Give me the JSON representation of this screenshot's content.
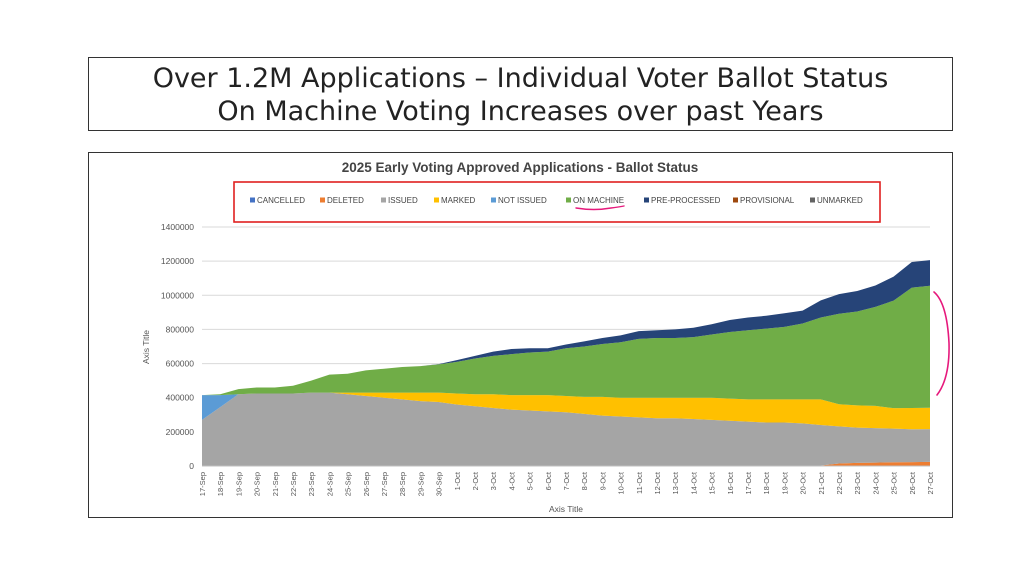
{
  "slide": {
    "title_line1": "Over 1.2M Applications – Individual Voter Ballot Status",
    "title_line2": "On Machine Voting Increases over past Years"
  },
  "colors": {
    "cancelled": "#4472c4",
    "deleted": "#ed7d31",
    "issued": "#a5a5a5",
    "marked": "#ffc000",
    "not_issued": "#5b9bd5",
    "on_machine": "#70ad47",
    "pre_processed": "#264478",
    "provisional": "#9e480e",
    "unmarked": "#636363",
    "legend_highlight": "#e0201f",
    "annotation": "#e6197c"
  },
  "chart_data": {
    "type": "area",
    "stacked": true,
    "title": "2025 Early Voting Approved Applications - Ballot Status",
    "xlabel": "Axis Title",
    "ylabel": "Axis Title",
    "ylim": [
      0,
      1400000
    ],
    "yticks": [
      0,
      200000,
      400000,
      600000,
      800000,
      1000000,
      1200000,
      1400000
    ],
    "ytick_labels": [
      "0",
      "200000",
      "400000",
      "600000",
      "800000",
      "1000000",
      "1200000",
      "1400000"
    ],
    "legend_position": "top",
    "categories": [
      "17-Sep",
      "18-Sep",
      "19-Sep",
      "20-Sep",
      "21-Sep",
      "22-Sep",
      "23-Sep",
      "24-Sep",
      "25-Sep",
      "26-Sep",
      "27-Sep",
      "28-Sep",
      "29-Sep",
      "30-Sep",
      "1-Oct",
      "2-Oct",
      "3-Oct",
      "4-Oct",
      "5-Oct",
      "6-Oct",
      "7-Oct",
      "8-Oct",
      "9-Oct",
      "10-Oct",
      "11-Oct",
      "12-Oct",
      "13-Oct",
      "14-Oct",
      "15-Oct",
      "16-Oct",
      "17-Oct",
      "18-Oct",
      "19-Oct",
      "20-Oct",
      "21-Oct",
      "22-Oct",
      "23-Oct",
      "24-Oct",
      "25-Oct",
      "26-Oct",
      "27-Oct"
    ],
    "series": [
      {
        "name": "CANCELLED",
        "key": "cancelled",
        "values": [
          0,
          0,
          0,
          0,
          0,
          0,
          0,
          0,
          0,
          0,
          0,
          0,
          0,
          0,
          0,
          0,
          0,
          0,
          0,
          0,
          0,
          0,
          0,
          0,
          0,
          0,
          0,
          0,
          0,
          0,
          0,
          0,
          0,
          0,
          0,
          0,
          0,
          0,
          0,
          0,
          0
        ]
      },
      {
        "name": "DELETED",
        "key": "deleted",
        "values": [
          3000,
          3000,
          3000,
          3000,
          3000,
          3000,
          3000,
          3000,
          3000,
          3000,
          3000,
          3000,
          3000,
          3000,
          3000,
          3000,
          3000,
          3000,
          3000,
          3000,
          3000,
          3000,
          3000,
          3000,
          3000,
          3000,
          3000,
          3000,
          3000,
          3000,
          3000,
          3000,
          3000,
          3000,
          3000,
          15000,
          18000,
          20000,
          22000,
          23000,
          24000
        ]
      },
      {
        "name": "ISSUED",
        "key": "issued",
        "values": [
          267000,
          342000,
          417000,
          422000,
          422000,
          422000,
          427000,
          427000,
          417000,
          407000,
          397000,
          387000,
          377000,
          372000,
          357000,
          347000,
          337000,
          327000,
          322000,
          317000,
          312000,
          302000,
          292000,
          287000,
          282000,
          277000,
          277000,
          272000,
          267000,
          262000,
          257000,
          252000,
          252000,
          247000,
          237000,
          217000,
          207000,
          202000,
          197000,
          192000,
          192000
        ]
      },
      {
        "name": "MARKED",
        "key": "marked",
        "values": [
          0,
          0,
          0,
          0,
          0,
          0,
          0,
          0,
          10000,
          20000,
          30000,
          40000,
          50000,
          55000,
          65000,
          70000,
          80000,
          85000,
          90000,
          95000,
          95000,
          100000,
          110000,
          110000,
          115000,
          120000,
          120000,
          125000,
          130000,
          130000,
          130000,
          135000,
          135000,
          140000,
          150000,
          130000,
          130000,
          130000,
          120000,
          125000,
          125000
        ]
      },
      {
        "name": "NOT ISSUED",
        "key": "not_issued",
        "values": [
          145000,
          70000,
          0,
          0,
          0,
          0,
          0,
          0,
          0,
          0,
          0,
          0,
          0,
          0,
          0,
          0,
          0,
          0,
          0,
          0,
          0,
          0,
          0,
          0,
          0,
          0,
          0,
          0,
          0,
          0,
          0,
          0,
          0,
          0,
          0,
          0,
          0,
          0,
          0,
          0,
          0
        ]
      },
      {
        "name": "ON MACHINE",
        "key": "on_machine",
        "values": [
          0,
          5000,
          30000,
          35000,
          35000,
          45000,
          70000,
          105000,
          110000,
          130000,
          140000,
          150000,
          155000,
          165000,
          185000,
          210000,
          225000,
          240000,
          250000,
          255000,
          280000,
          295000,
          310000,
          325000,
          345000,
          350000,
          350000,
          355000,
          370000,
          390000,
          405000,
          415000,
          425000,
          445000,
          480000,
          530000,
          550000,
          580000,
          630000,
          705000,
          715000
        ]
      },
      {
        "name": "PRE-PROCESSED",
        "key": "pre_processed",
        "values": [
          0,
          0,
          0,
          0,
          0,
          0,
          0,
          0,
          0,
          0,
          0,
          0,
          0,
          2000,
          10000,
          15000,
          25000,
          30000,
          25000,
          20000,
          22000,
          30000,
          35000,
          40000,
          45000,
          45000,
          50000,
          55000,
          60000,
          70000,
          75000,
          75000,
          80000,
          75000,
          100000,
          115000,
          120000,
          125000,
          140000,
          150000,
          150000
        ]
      },
      {
        "name": "PROVISIONAL",
        "key": "provisional",
        "values": [
          0,
          0,
          0,
          0,
          0,
          0,
          0,
          0,
          0,
          0,
          0,
          0,
          0,
          0,
          0,
          0,
          0,
          0,
          0,
          0,
          0,
          0,
          0,
          0,
          0,
          0,
          0,
          0,
          0,
          0,
          0,
          0,
          0,
          0,
          0,
          0,
          0,
          0,
          0,
          0,
          0
        ]
      },
      {
        "name": "UNMARKED",
        "key": "unmarked",
        "values": [
          0,
          0,
          0,
          0,
          0,
          0,
          0,
          0,
          0,
          0,
          0,
          0,
          0,
          0,
          0,
          0,
          0,
          0,
          0,
          0,
          0,
          0,
          0,
          0,
          0,
          0,
          0,
          0,
          0,
          0,
          0,
          0,
          0,
          0,
          0,
          0,
          0,
          0,
          0,
          0,
          0
        ]
      }
    ]
  }
}
